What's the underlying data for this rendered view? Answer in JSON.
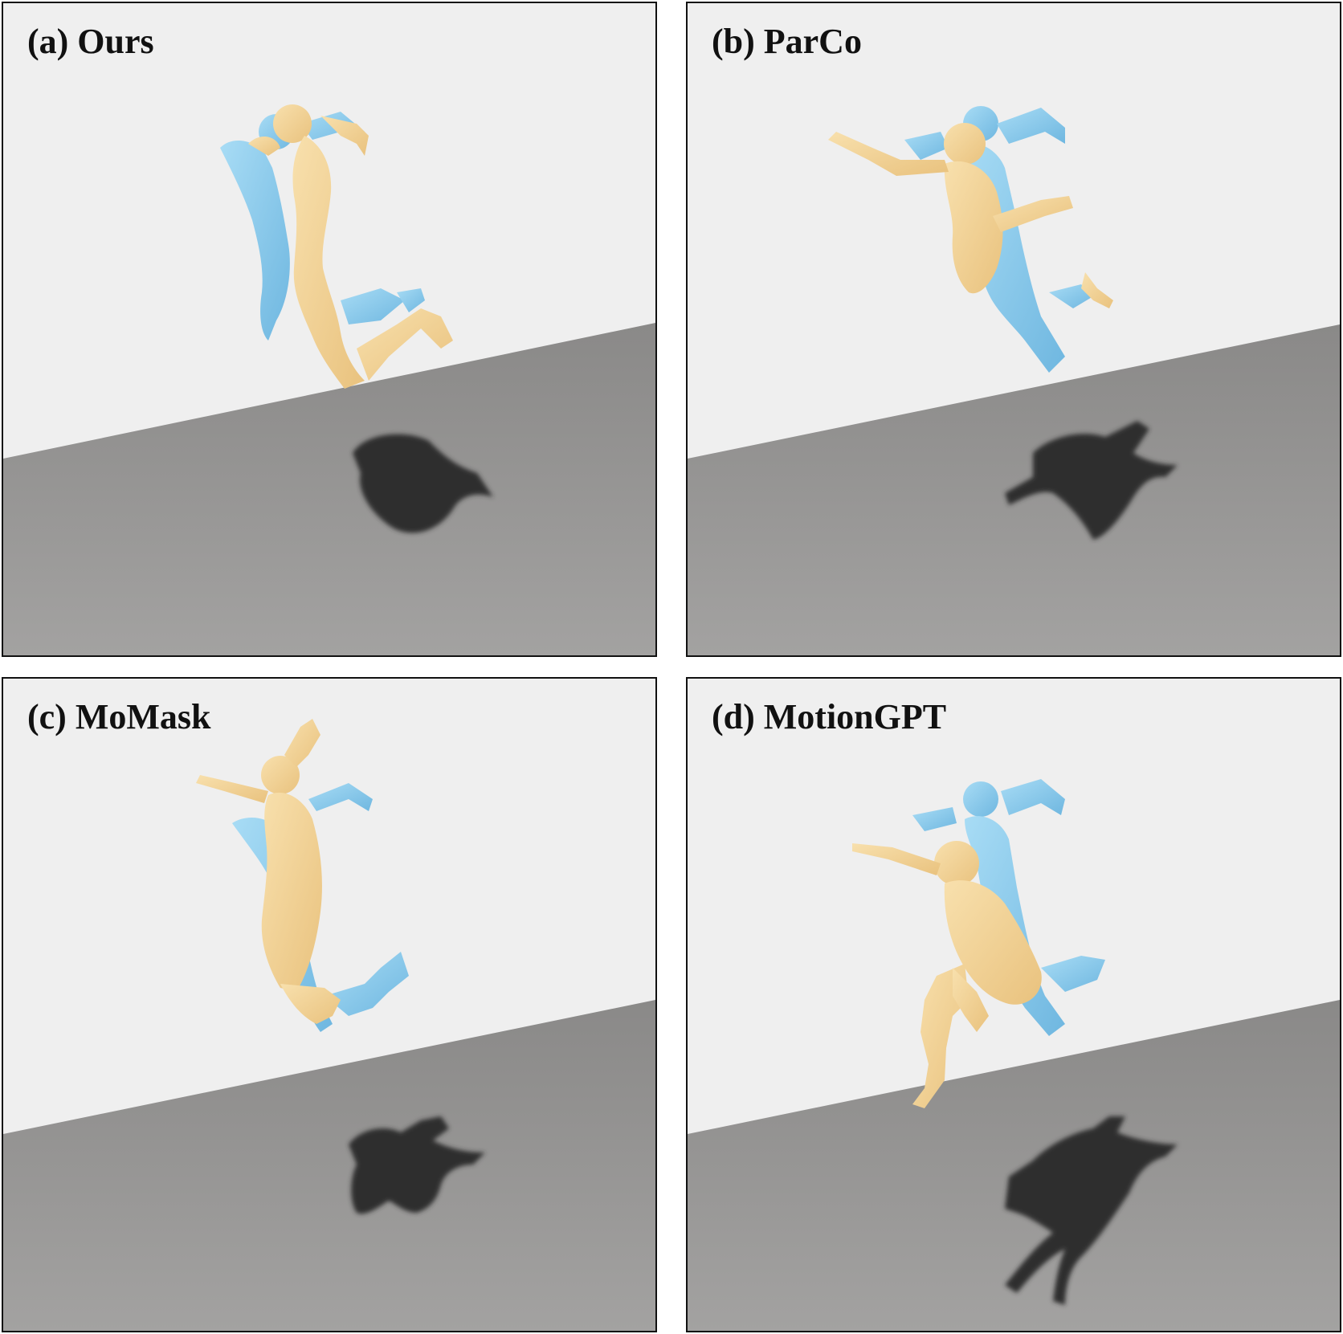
{
  "figure": {
    "panels": [
      {
        "id": "a",
        "label": "(a) Ours"
      },
      {
        "id": "b",
        "label": "(b) ParCo"
      },
      {
        "id": "c",
        "label": "(c) MoMask"
      },
      {
        "id": "d",
        "label": "(d) MotionGPT"
      }
    ]
  },
  "colors": {
    "wall": "#efefef",
    "floor": "#8f8e8d",
    "shadow": "#2f2f2f",
    "reference_body": "#8fcdee",
    "generated_body": "#f3d497",
    "border": "#111111"
  }
}
